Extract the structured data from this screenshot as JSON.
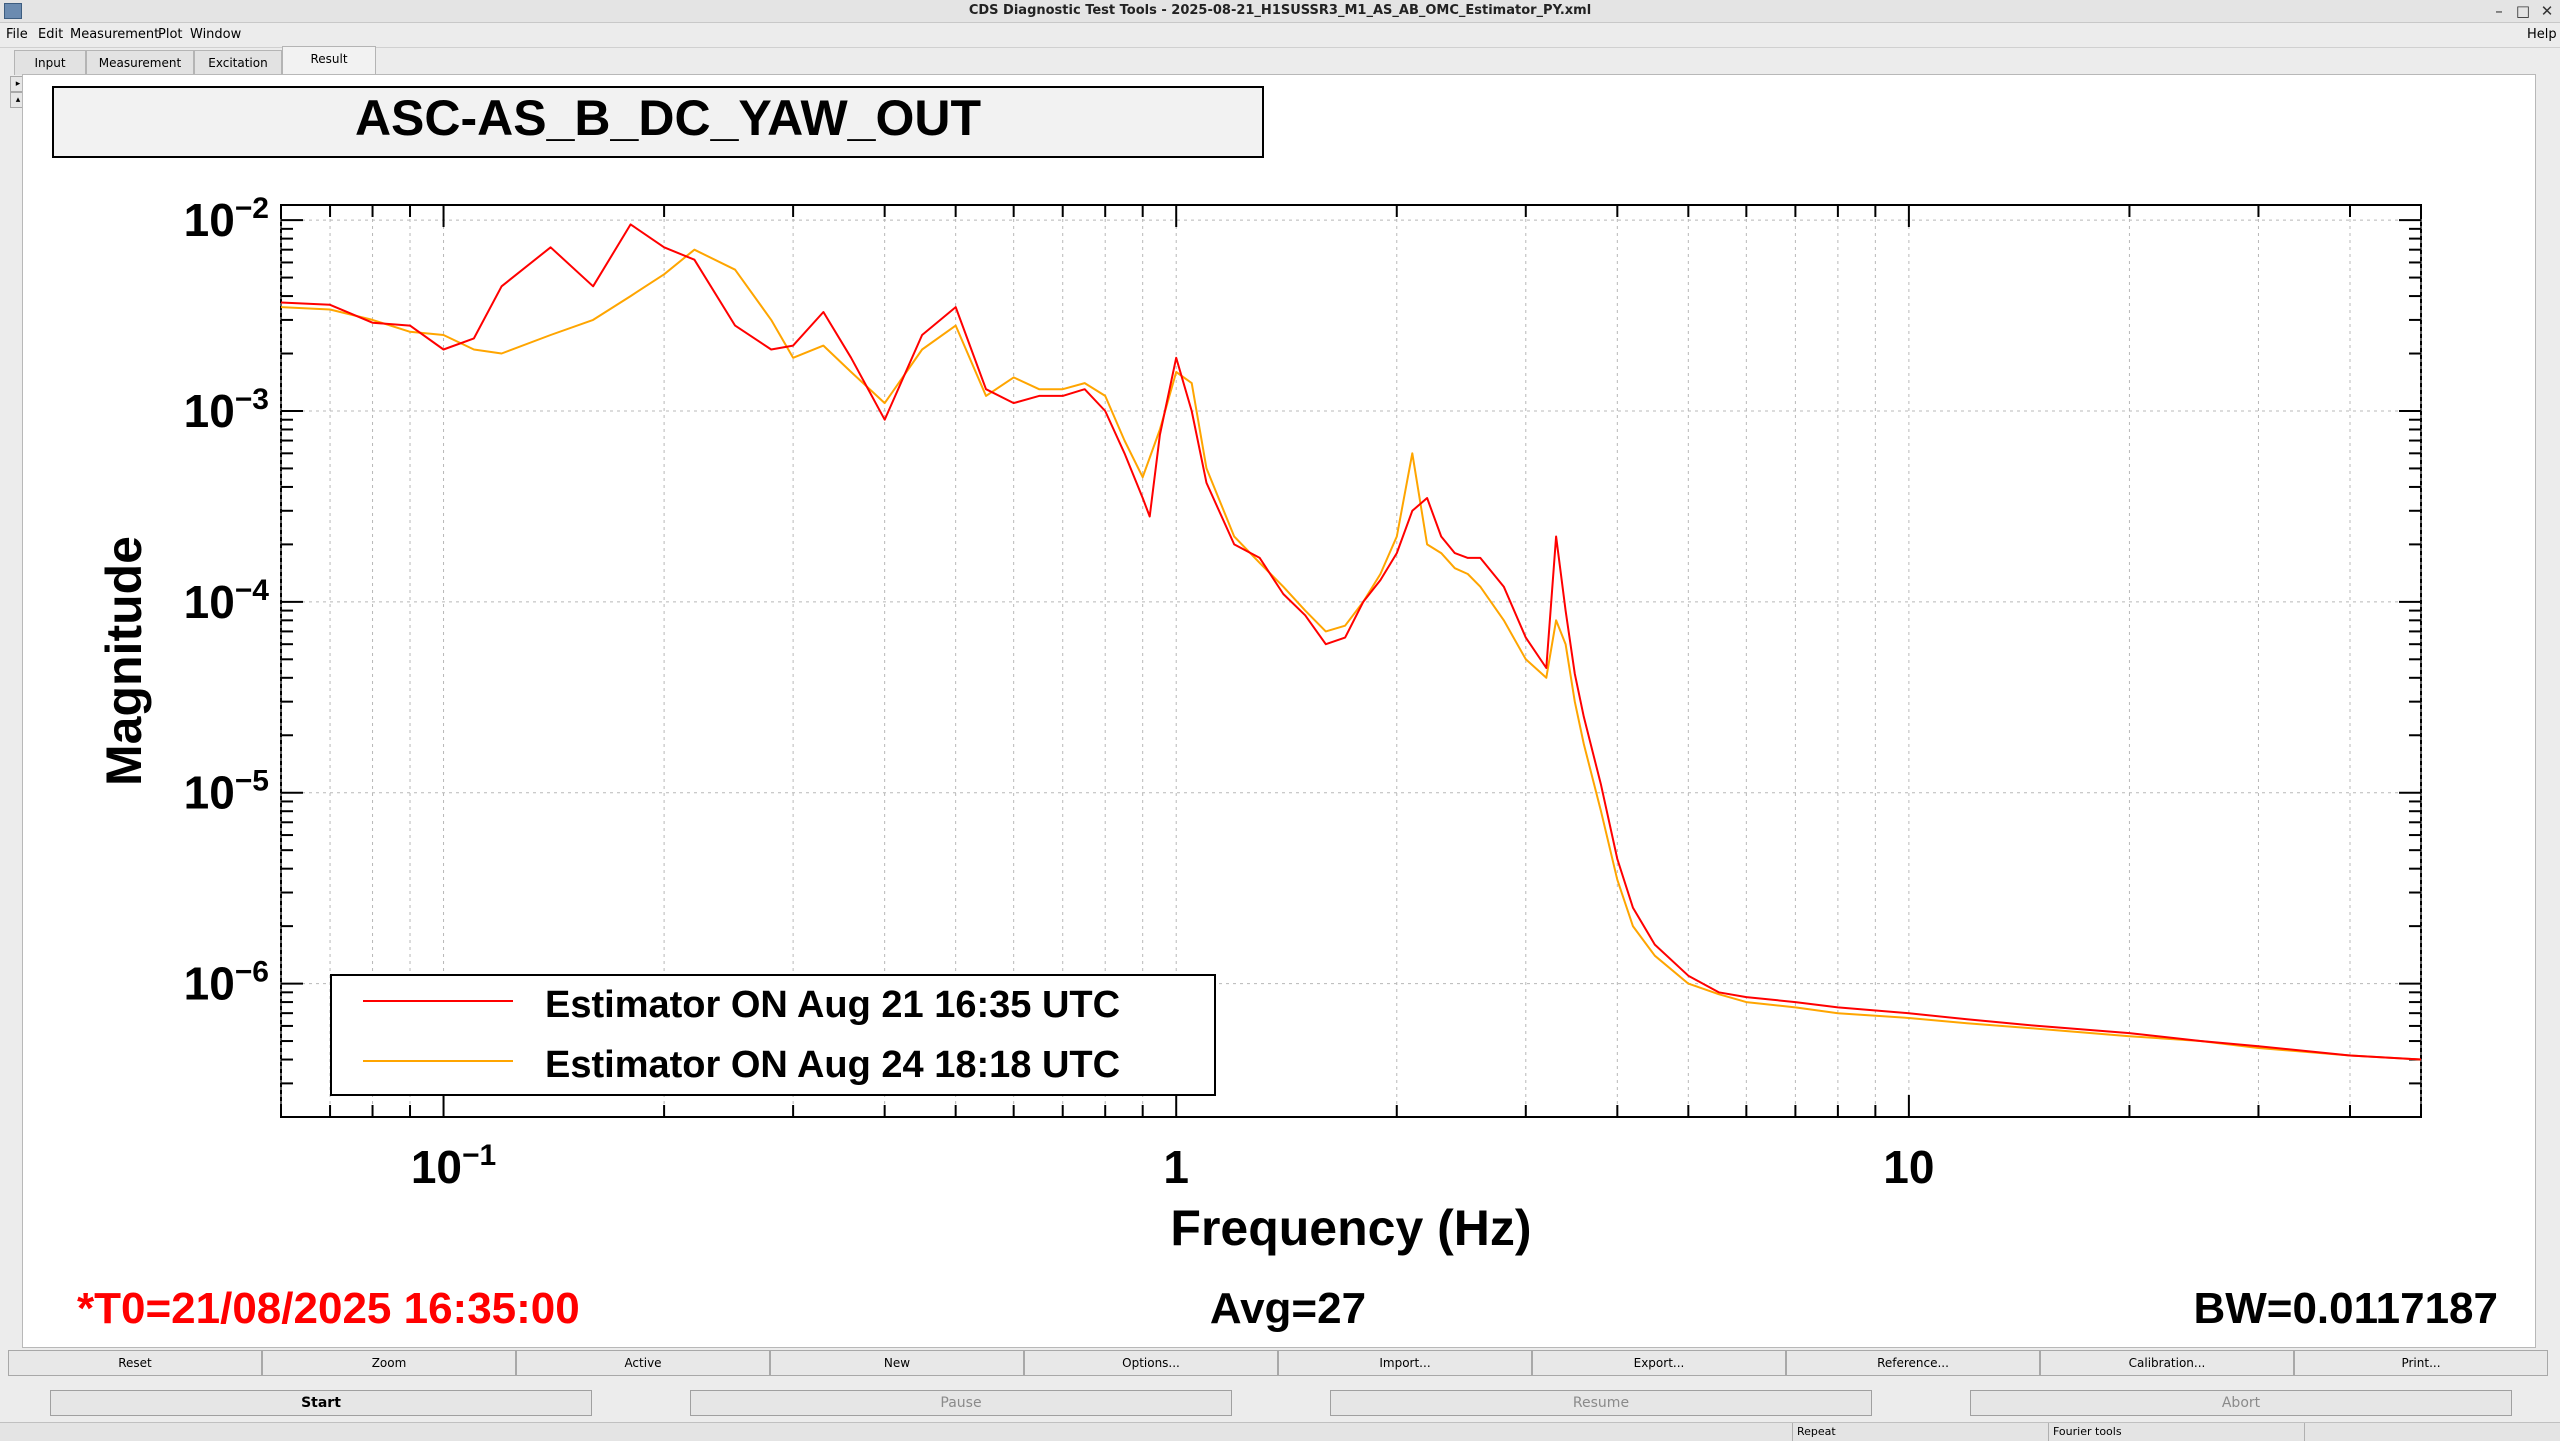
{
  "window": {
    "title": "CDS Diagnostic Test Tools - 2025-08-21_H1SUSSR3_M1_AS_AB_OMC_Estimator_PY.xml"
  },
  "menu": {
    "items": [
      "File",
      "Edit",
      "Measurement",
      "Plot",
      "Window"
    ],
    "help": "Help"
  },
  "tabs": [
    "Input",
    "Measurement",
    "Excitation",
    "Result"
  ],
  "side_buttons": {
    "expand": "▸",
    "collapse": "▴"
  },
  "plot": {
    "channel_title": "ASC-AS_B_DC_YAW_OUT",
    "status": {
      "t0": "*T0=21/08/2025 16:35:00",
      "avg": "Avg=27",
      "bw": "BW=0.0117187"
    }
  },
  "chart_data": {
    "type": "line",
    "xscale": "log",
    "yscale": "log",
    "xlabel": "Frequency (Hz)",
    "ylabel": "Magnitude",
    "xlim": [
      0.06,
      50
    ],
    "ylim": [
      2e-07,
      0.012
    ],
    "grid": true,
    "legend_position": "bottom-left",
    "x_tick_labels": [
      {
        "value": 0.1,
        "base": "10",
        "exp": "−1"
      },
      {
        "value": 1,
        "base": "1",
        "exp": ""
      },
      {
        "value": 10,
        "base": "10",
        "exp": ""
      }
    ],
    "y_tick_labels": [
      {
        "value": 0.01,
        "base": "10",
        "exp": "−2"
      },
      {
        "value": 0.001,
        "base": "10",
        "exp": "−3"
      },
      {
        "value": 0.0001,
        "base": "10",
        "exp": "−4"
      },
      {
        "value": 1e-05,
        "base": "10",
        "exp": "−5"
      },
      {
        "value": 1e-06,
        "base": "10",
        "exp": "−6"
      }
    ],
    "series": [
      {
        "name": "Estimator ON Aug 21 16:35 UTC",
        "color": "#ff0000",
        "x": [
          0.06,
          0.07,
          0.08,
          0.09,
          0.1,
          0.11,
          0.12,
          0.14,
          0.16,
          0.18,
          0.2,
          0.22,
          0.25,
          0.28,
          0.3,
          0.33,
          0.36,
          0.4,
          0.45,
          0.5,
          0.55,
          0.6,
          0.65,
          0.7,
          0.75,
          0.8,
          0.85,
          0.9,
          0.92,
          0.95,
          1.0,
          1.05,
          1.1,
          1.2,
          1.3,
          1.4,
          1.5,
          1.6,
          1.7,
          1.8,
          1.9,
          2.0,
          2.1,
          2.2,
          2.3,
          2.4,
          2.5,
          2.6,
          2.8,
          3.0,
          3.2,
          3.3,
          3.4,
          3.5,
          3.6,
          3.8,
          4.0,
          4.2,
          4.5,
          5.0,
          5.5,
          6.0,
          7.0,
          8.0,
          10.0,
          12.0,
          15.0,
          20.0,
          25.0,
          30.0,
          40.0,
          50.0
        ],
        "y": [
          0.0037,
          0.0036,
          0.0029,
          0.0028,
          0.0021,
          0.0024,
          0.0045,
          0.0072,
          0.0045,
          0.0095,
          0.0072,
          0.0062,
          0.0028,
          0.0021,
          0.0022,
          0.0033,
          0.0019,
          0.0009,
          0.0025,
          0.0035,
          0.0013,
          0.0011,
          0.0012,
          0.0012,
          0.0013,
          0.001,
          0.0006,
          0.00035,
          0.00028,
          0.00075,
          0.0019,
          0.001,
          0.00042,
          0.0002,
          0.00017,
          0.00011,
          8.5e-05,
          6e-05,
          6.5e-05,
          0.0001,
          0.00013,
          0.00018,
          0.0003,
          0.00035,
          0.00022,
          0.00018,
          0.00017,
          0.00017,
          0.00012,
          6.5e-05,
          4.5e-05,
          0.00022,
          9e-05,
          4.2e-05,
          2.5e-05,
          1.1e-05,
          4.5e-06,
          2.5e-06,
          1.6e-06,
          1.1e-06,
          9e-07,
          8.5e-07,
          8e-07,
          7.5e-07,
          7e-07,
          6.5e-07,
          6e-07,
          5.5e-07,
          5e-07,
          4.7e-07,
          4.2e-07,
          4e-07
        ]
      },
      {
        "name": "Estimator ON Aug 24 18:18 UTC",
        "color": "#ffa500",
        "x": [
          0.06,
          0.07,
          0.08,
          0.09,
          0.1,
          0.11,
          0.12,
          0.14,
          0.16,
          0.18,
          0.2,
          0.22,
          0.25,
          0.28,
          0.3,
          0.33,
          0.36,
          0.4,
          0.45,
          0.5,
          0.55,
          0.6,
          0.65,
          0.7,
          0.75,
          0.8,
          0.85,
          0.9,
          0.95,
          1.0,
          1.05,
          1.1,
          1.2,
          1.3,
          1.4,
          1.5,
          1.6,
          1.7,
          1.8,
          1.9,
          2.0,
          2.1,
          2.2,
          2.3,
          2.4,
          2.5,
          2.6,
          2.8,
          3.0,
          3.2,
          3.3,
          3.4,
          3.5,
          3.6,
          3.8,
          4.0,
          4.2,
          4.5,
          5.0,
          5.5,
          6.0,
          7.0,
          8.0,
          10.0,
          12.0,
          15.0,
          20.0,
          25.0,
          30.0,
          40.0,
          50.0
        ],
        "y": [
          0.0035,
          0.0034,
          0.003,
          0.0026,
          0.0025,
          0.0021,
          0.002,
          0.0025,
          0.003,
          0.004,
          0.0052,
          0.007,
          0.0055,
          0.003,
          0.0019,
          0.0022,
          0.0016,
          0.0011,
          0.0021,
          0.0028,
          0.0012,
          0.0015,
          0.0013,
          0.0013,
          0.0014,
          0.0012,
          0.0007,
          0.00045,
          0.0008,
          0.0016,
          0.0014,
          0.0005,
          0.00022,
          0.00016,
          0.00012,
          9e-05,
          7e-05,
          7.5e-05,
          0.0001,
          0.00014,
          0.00022,
          0.0006,
          0.0002,
          0.00018,
          0.00015,
          0.00014,
          0.00012,
          8e-05,
          5e-05,
          4e-05,
          8e-05,
          6e-05,
          3e-05,
          1.8e-05,
          8e-06,
          3.5e-06,
          2e-06,
          1.4e-06,
          1e-06,
          8.8e-07,
          8e-07,
          7.5e-07,
          7e-07,
          6.6e-07,
          6.2e-07,
          5.8e-07,
          5.3e-07,
          5e-07,
          4.6e-07,
          4.2e-07,
          4e-07
        ]
      }
    ]
  },
  "bottom_buttons": [
    "Reset",
    "Zoom",
    "Active",
    "New",
    "Options...",
    "Import...",
    "Export...",
    "Reference...",
    "Calibration...",
    "Print..."
  ],
  "control_buttons": [
    "Start",
    "Pause",
    "Resume",
    "Abort"
  ],
  "status_bar": {
    "repeat": "Repeat",
    "fourier": "Fourier tools"
  }
}
